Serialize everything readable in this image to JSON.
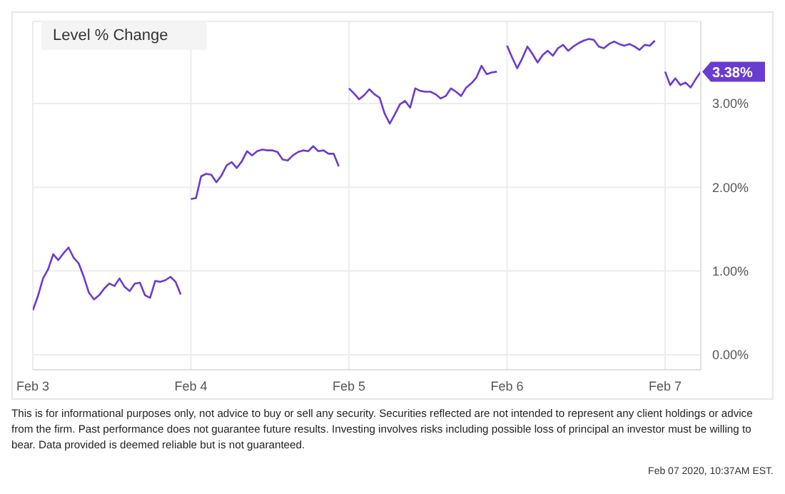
{
  "chart_data": {
    "type": "line",
    "title": "Level % Change",
    "categories": [
      "Feb 3",
      null,
      null,
      null,
      null,
      null,
      null,
      null,
      null,
      null,
      null,
      null,
      null,
      null,
      null,
      null,
      null,
      null,
      null,
      null,
      null,
      null,
      null,
      null,
      null,
      null,
      null,
      null,
      null,
      null,
      null,
      "Feb 4",
      null,
      null,
      null,
      null,
      null,
      null,
      null,
      null,
      null,
      null,
      null,
      null,
      null,
      null,
      null,
      null,
      null,
      null,
      null,
      null,
      null,
      null,
      null,
      null,
      null,
      null,
      null,
      null,
      null,
      null,
      "Feb 5",
      null,
      null,
      null,
      null,
      null,
      null,
      null,
      null,
      null,
      null,
      null,
      null,
      null,
      null,
      null,
      null,
      null,
      null,
      null,
      null,
      null,
      null,
      null,
      null,
      null,
      null,
      null,
      null,
      null,
      null,
      "Feb 6",
      null,
      null,
      null,
      null,
      null,
      null,
      null,
      null,
      null,
      null,
      null,
      null,
      null,
      null,
      null,
      null,
      null,
      null,
      null,
      null,
      null,
      null,
      null,
      null,
      null,
      null,
      null,
      null,
      null,
      null,
      "Feb 7",
      null,
      null,
      null,
      null,
      null,
      null,
      null
    ],
    "series": [
      {
        "color": "#6a3bd1",
        "values": [
          0.53,
          0.7,
          0.91,
          1.02,
          1.2,
          1.13,
          1.21,
          1.28,
          1.16,
          1.09,
          0.93,
          0.74,
          0.66,
          0.71,
          0.79,
          0.85,
          0.82,
          0.91,
          0.81,
          0.76,
          0.85,
          0.86,
          0.71,
          0.68,
          0.88,
          0.87,
          0.89,
          0.93,
          0.87,
          0.72,
          null,
          1.86,
          1.87,
          2.13,
          2.16,
          2.15,
          2.06,
          2.14,
          2.26,
          2.3,
          2.23,
          2.31,
          2.43,
          2.38,
          2.43,
          2.45,
          2.44,
          2.44,
          2.42,
          2.33,
          2.32,
          2.38,
          2.42,
          2.44,
          2.43,
          2.49,
          2.43,
          2.44,
          2.4,
          2.4,
          2.25,
          null,
          3.18,
          3.12,
          3.05,
          3.1,
          3.17,
          3.11,
          3.07,
          2.88,
          2.76,
          2.87,
          2.99,
          3.03,
          2.95,
          3.18,
          3.15,
          3.14,
          3.14,
          3.11,
          3.06,
          3.09,
          3.18,
          3.14,
          3.09,
          3.19,
          3.24,
          3.31,
          3.45,
          3.35,
          3.37,
          3.38,
          null,
          3.69,
          3.55,
          3.42,
          3.54,
          3.68,
          3.59,
          3.49,
          3.58,
          3.63,
          3.57,
          3.66,
          3.7,
          3.63,
          3.68,
          3.72,
          3.75,
          3.77,
          3.76,
          3.68,
          3.66,
          3.71,
          3.74,
          3.71,
          3.69,
          3.71,
          3.68,
          3.64,
          3.7,
          3.69,
          3.75,
          null,
          3.38,
          3.22,
          3.3,
          3.22,
          3.25,
          3.19,
          3.29,
          3.38
        ],
        "value_labels": [
          null,
          null,
          null,
          null,
          null,
          null,
          null,
          null,
          null,
          null,
          null,
          null,
          null,
          null,
          null,
          null,
          null,
          null,
          null,
          null,
          null,
          null,
          null,
          null,
          null,
          null,
          null,
          null,
          null,
          null,
          null,
          null,
          null,
          null,
          null,
          null,
          null,
          null,
          null,
          null,
          null,
          null,
          null,
          null,
          null,
          null,
          null,
          null,
          null,
          null,
          null,
          null,
          null,
          null,
          null,
          null,
          null,
          null,
          null,
          null,
          null,
          null,
          null,
          null,
          null,
          null,
          null,
          null,
          null,
          null,
          null,
          null,
          null,
          null,
          null,
          null,
          null,
          null,
          null,
          null,
          null,
          null,
          null,
          null,
          null,
          null,
          null,
          null,
          null,
          null,
          null,
          null,
          null,
          null,
          null,
          null,
          null,
          null,
          null,
          null,
          null,
          null,
          null,
          null,
          null,
          null,
          null,
          null,
          null,
          null,
          null,
          null,
          null,
          null,
          null,
          null,
          null,
          null,
          null,
          null,
          null,
          null,
          null,
          null,
          null,
          null,
          null,
          null,
          null,
          null,
          null,
          "3.38%"
        ]
      }
    ],
    "ylim": [
      -0.18,
      3.98
    ],
    "yticks": [
      {
        "value": 0,
        "label": "0.00%"
      },
      {
        "value": 1,
        "label": "1.00%"
      },
      {
        "value": 2,
        "label": "2.00%"
      },
      {
        "value": 3,
        "label": "3.00%"
      }
    ],
    "grid": true,
    "annotations": [
      "This is for informational purposes only, not advice to buy or sell any security. Securities reflected are not intended to represent any client holdings or advice from the firm. Past performance does not guarantee future results. Investing involves risks including possible loss of principal an investor must be willing to bear. Data provided is deemed reliable but is not guaranteed.",
      "Feb 07 2020, 10:37AM EST."
    ]
  }
}
